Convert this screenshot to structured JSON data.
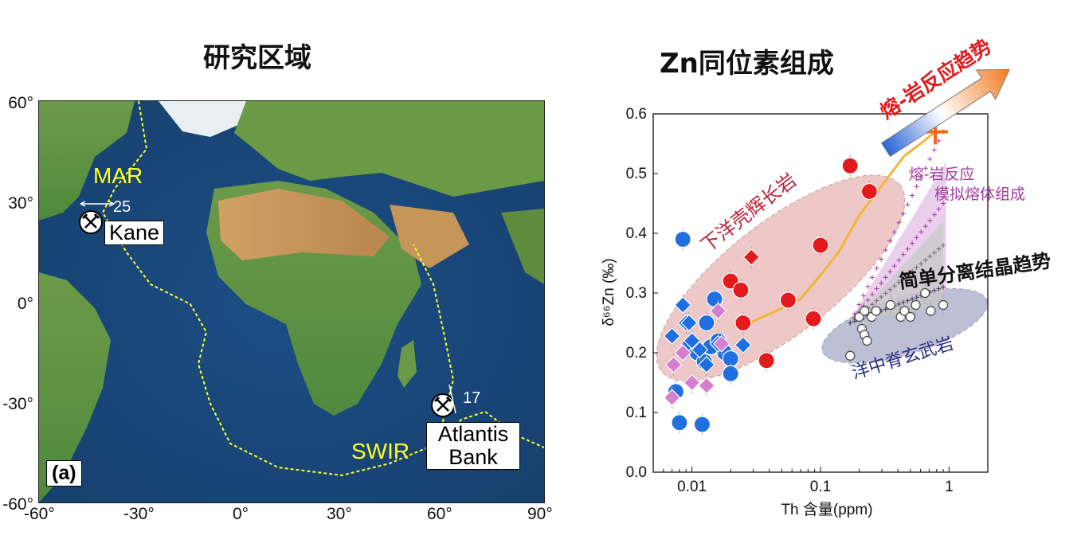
{
  "map": {
    "title": "研究区域",
    "lat_labels": [
      "60°",
      "30°",
      "0°",
      "-30°",
      "-60°"
    ],
    "lon_labels": [
      "-60°",
      "-30°",
      "0°",
      "30°",
      "60°",
      "90°"
    ],
    "ridges": {
      "mar": "MAR",
      "swir": "SWIR"
    },
    "sites": {
      "kane": {
        "name": "Kane",
        "rate": "25"
      },
      "atlantis": {
        "name_line1": "Atlantis",
        "name_line2": "Bank",
        "rate": "17"
      }
    },
    "panel_tag": "(a)",
    "colors": {
      "ocean_deep": "#1f4a7a",
      "ocean_shelf": "#5fa0c8",
      "land_low": "#4f8a3e",
      "land_high": "#c89a5a",
      "ridge": "#ffff22"
    },
    "icons": {
      "site": "crossed-hammers-icon"
    }
  },
  "chart_data": {
    "type": "scatter",
    "title": "Zn同位素组成",
    "xlabel": "Th 含量(ppm)",
    "ylabel": "δ⁶⁶Zn (‰)",
    "xscale": "log",
    "xlim": [
      0.005,
      2
    ],
    "ylim": [
      0,
      0.6
    ],
    "xticks": [
      0.01,
      0.1,
      1
    ],
    "xtick_labels": [
      "0.01",
      "0.1",
      "1"
    ],
    "yticks": [
      0,
      0.1,
      0.2,
      0.3,
      0.4,
      0.5,
      0.6
    ],
    "ytick_labels": [
      "0.0",
      "0.1",
      "0.2",
      "0.3",
      "0.4",
      "0.5",
      "0.6"
    ],
    "grid": false,
    "annotations": {
      "trend_arrow": "熔-岩反应趋势",
      "melt_sim_line1": "熔-岩反应",
      "melt_sim_line2": "模拟熔体组成",
      "frac_cryst": "简单分离结晶趋势",
      "gabbro_field": "下洋壳辉长岩",
      "morb_field": "洋中脊玄武岩"
    },
    "series": [
      {
        "marker": "circle",
        "color": "#1f6fe0",
        "points": [
          [
            0.0085,
            0.39
          ],
          [
            0.008,
            0.083
          ],
          [
            0.012,
            0.08
          ],
          [
            0.0075,
            0.135
          ],
          [
            0.0095,
            0.21
          ],
          [
            0.011,
            0.2
          ],
          [
            0.013,
            0.25
          ],
          [
            0.014,
            0.21
          ],
          [
            0.015,
            0.29
          ],
          [
            0.018,
            0.2
          ],
          [
            0.02,
            0.19
          ],
          [
            0.02,
            0.165
          ],
          [
            0.016,
            0.22
          ],
          [
            0.0125,
            0.185
          ]
        ]
      },
      {
        "marker": "diamond",
        "color": "#1f6fe0",
        "points": [
          [
            0.007,
            0.228
          ],
          [
            0.0085,
            0.28
          ],
          [
            0.009,
            0.25
          ],
          [
            0.01,
            0.22
          ],
          [
            0.0115,
            0.205
          ],
          [
            0.013,
            0.18
          ],
          [
            0.016,
            0.215
          ],
          [
            0.025,
            0.213
          ],
          [
            0.0095,
            0.25
          ]
        ]
      },
      {
        "marker": "diamond",
        "color": "#d67fd0",
        "points": [
          [
            0.007,
            0.125
          ],
          [
            0.0072,
            0.18
          ],
          [
            0.0085,
            0.2
          ],
          [
            0.01,
            0.15
          ],
          [
            0.013,
            0.145
          ],
          [
            0.016,
            0.27
          ],
          [
            0.017,
            0.215
          ]
        ]
      },
      {
        "marker": "circle",
        "color": "#e31a1c",
        "points": [
          [
            0.17,
            0.513
          ],
          [
            0.24,
            0.47
          ],
          [
            0.1,
            0.38
          ],
          [
            0.02,
            0.32
          ],
          [
            0.024,
            0.305
          ],
          [
            0.056,
            0.288
          ],
          [
            0.025,
            0.25
          ],
          [
            0.088,
            0.257
          ],
          [
            0.038,
            0.187
          ]
        ]
      },
      {
        "marker": "diamond",
        "color": "#e31a1c",
        "points": [
          [
            0.029,
            0.36
          ]
        ]
      },
      {
        "marker": "circle",
        "color": "#ffffff",
        "points": [
          [
            0.17,
            0.195
          ],
          [
            0.2,
            0.26
          ],
          [
            0.21,
            0.24
          ],
          [
            0.22,
            0.23
          ],
          [
            0.23,
            0.22
          ],
          [
            0.25,
            0.26
          ],
          [
            0.27,
            0.27
          ],
          [
            0.35,
            0.28
          ],
          [
            0.42,
            0.26
          ],
          [
            0.45,
            0.27
          ],
          [
            0.5,
            0.26
          ],
          [
            0.55,
            0.28
          ],
          [
            0.65,
            0.3
          ],
          [
            0.72,
            0.27
          ],
          [
            0.9,
            0.28
          ],
          [
            0.22,
            0.27
          ]
        ]
      }
    ],
    "melt_reaction_path": [
      [
        0.028,
        0.25
      ],
      [
        0.045,
        0.27
      ],
      [
        0.07,
        0.29
      ],
      [
        0.1,
        0.33
      ],
      [
        0.14,
        0.37
      ],
      [
        0.2,
        0.43
      ],
      [
        0.3,
        0.48
      ],
      [
        0.45,
        0.53
      ],
      [
        0.6,
        0.55
      ],
      [
        0.78,
        0.57
      ]
    ],
    "end_member": [
      0.78,
      0.57
    ],
    "colors": {
      "gabbro_field": "#e8b4b4",
      "morb_field": "#b6b8cf",
      "path": "#f2b538",
      "end_member": "#f26a1b",
      "sim_melt": "#a23aa0",
      "frac_label": "#111111"
    }
  }
}
